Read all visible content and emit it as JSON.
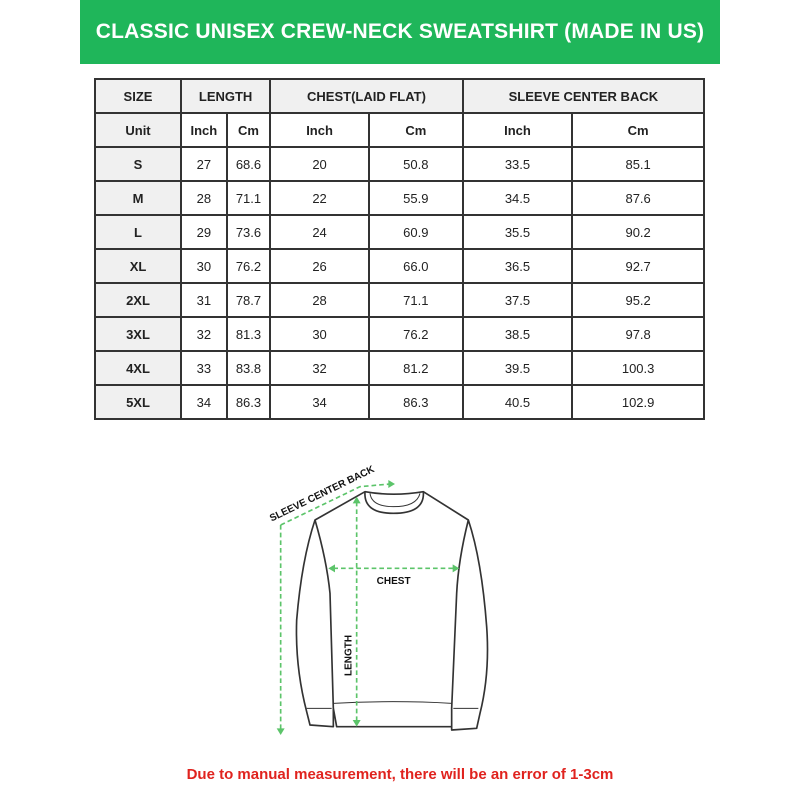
{
  "title": "CLASSIC UNISEX CREW-NECK SWEATSHIRT (MADE IN US)",
  "colors": {
    "banner": "#1fb65a",
    "arrow": "#5cc46a",
    "note": "#e0231e"
  },
  "table": {
    "headers": [
      "SIZE",
      "LENGTH",
      "CHEST(LAID FLAT)",
      "SLEEVE CENTER BACK"
    ],
    "units": [
      "Unit",
      "Inch",
      "Cm",
      "Inch",
      "Cm",
      "Inch",
      "Cm"
    ],
    "rows": [
      [
        "S",
        "27",
        "68.6",
        "20",
        "50.8",
        "33.5",
        "85.1"
      ],
      [
        "M",
        "28",
        "71.1",
        "22",
        "55.9",
        "34.5",
        "87.6"
      ],
      [
        "L",
        "29",
        "73.6",
        "24",
        "60.9",
        "35.5",
        "90.2"
      ],
      [
        "XL",
        "30",
        "76.2",
        "26",
        "66.0",
        "36.5",
        "92.7"
      ],
      [
        "2XL",
        "31",
        "78.7",
        "28",
        "71.1",
        "37.5",
        "95.2"
      ],
      [
        "3XL",
        "32",
        "81.3",
        "30",
        "76.2",
        "38.5",
        "97.8"
      ],
      [
        "4XL",
        "33",
        "83.8",
        "32",
        "81.2",
        "39.5",
        "100.3"
      ],
      [
        "5XL",
        "34",
        "86.3",
        "34",
        "86.3",
        "40.5",
        "102.9"
      ]
    ]
  },
  "diagram": {
    "sleeve_label": "SLEEVE CENTER BACK",
    "chest_label": "CHEST",
    "length_label": "LENGTH"
  },
  "note": "Due to manual measurement, there will be an error of 1-3cm"
}
